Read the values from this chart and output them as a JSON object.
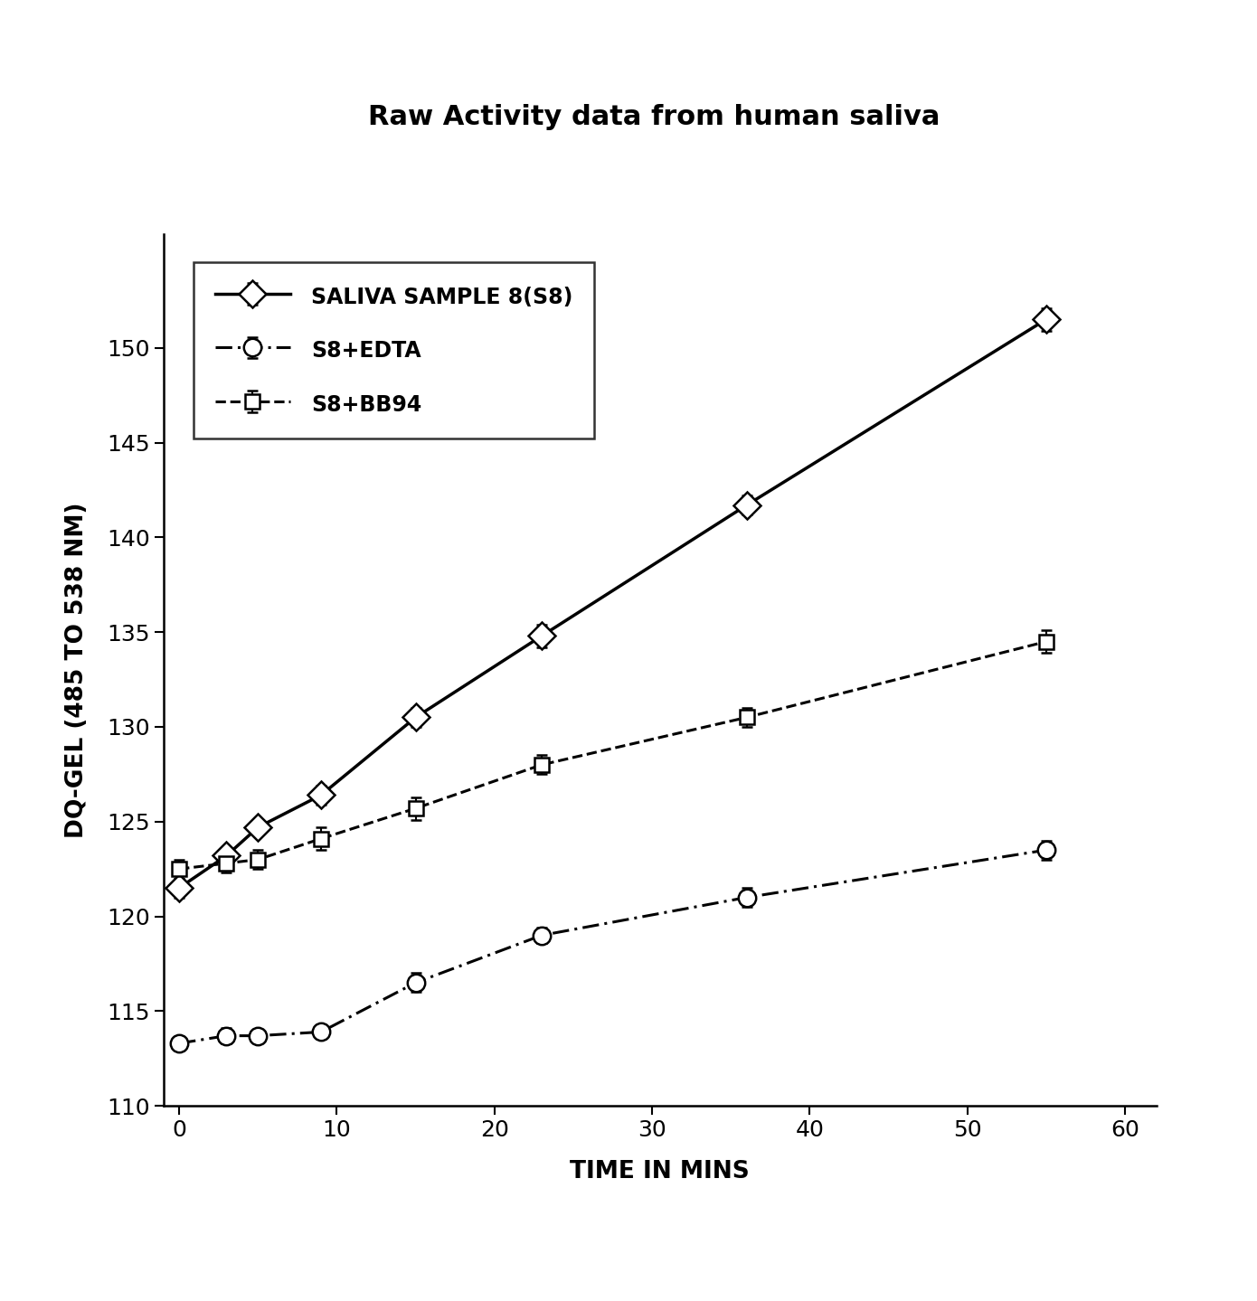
{
  "title": "Raw Activity data from human saliva",
  "xlabel": "TIME IN MINS",
  "ylabel": "DQ-GEL (485 TO 538 NM)",
  "xlim": [
    -1,
    62
  ],
  "ylim": [
    110,
    156
  ],
  "yticks": [
    110,
    115,
    120,
    125,
    130,
    135,
    140,
    145,
    150
  ],
  "xticks": [
    0,
    10,
    20,
    30,
    40,
    50,
    60
  ],
  "s8_x": [
    0,
    3,
    5,
    9,
    15,
    23,
    36,
    55
  ],
  "s8_y": [
    121.5,
    123.2,
    124.7,
    126.4,
    130.5,
    134.8,
    141.7,
    151.5
  ],
  "s8_yerr": [
    0.5,
    0.4,
    0.4,
    0.5,
    0.5,
    0.6,
    0.5,
    0.6
  ],
  "edta_x": [
    0,
    3,
    5,
    9,
    15,
    23,
    36,
    55
  ],
  "edta_y": [
    113.3,
    113.7,
    113.7,
    113.9,
    116.5,
    119.0,
    121.0,
    123.5
  ],
  "edta_yerr": [
    0.3,
    0.4,
    0.3,
    0.3,
    0.5,
    0.4,
    0.5,
    0.5
  ],
  "bb94_x": [
    0,
    3,
    5,
    9,
    15,
    23,
    36,
    55
  ],
  "bb94_y": [
    122.5,
    122.8,
    123.0,
    124.1,
    125.7,
    128.0,
    130.5,
    134.5
  ],
  "bb94_yerr": [
    0.5,
    0.5,
    0.5,
    0.6,
    0.6,
    0.5,
    0.5,
    0.6
  ],
  "legend_labels": [
    "SALIVA SAMPLE 8(S8)",
    "S8+EDTA",
    "S8+BB94"
  ],
  "title_fontsize": 22,
  "label_fontsize": 19,
  "tick_fontsize": 18,
  "legend_fontsize": 17
}
